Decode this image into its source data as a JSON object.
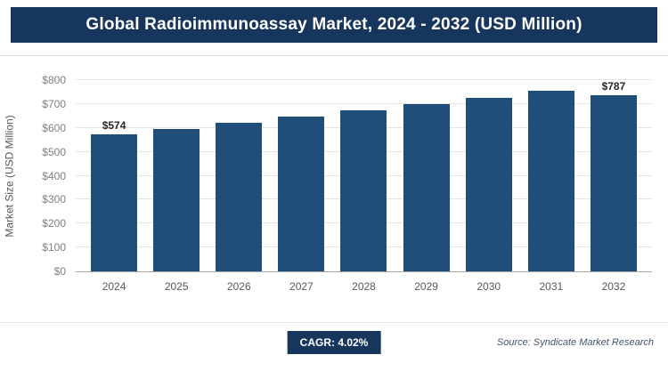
{
  "header": {
    "title": "Global Radioimmunoassay Market, 2024 - 2032 (USD Million)"
  },
  "footer": {
    "cagr_label": "CAGR: 4.02%",
    "source": "Source: Syndicate Market Research"
  },
  "colors": {
    "header_bg": "#17365d",
    "bar": "#1f4e79",
    "badge_bg": "#17365d",
    "gridline": "#e4e4e4",
    "axis_line": "#a6a6a6",
    "tick_text": "#7f7f7f",
    "year_text": "#595959"
  },
  "chart_data": {
    "type": "bar",
    "title": "Global Radioimmunoassay Market, 2024 - 2032 (USD Million)",
    "categories": [
      "2024",
      "2025",
      "2026",
      "2027",
      "2028",
      "2029",
      "2030",
      "2031",
      "2032"
    ],
    "values": [
      574,
      597,
      621,
      646,
      672,
      699,
      727,
      756,
      787
    ],
    "bar_labels": [
      "$574",
      "",
      "",
      "",
      "",
      "",
      "",
      "",
      "$787"
    ],
    "xlabel": "",
    "ylabel": "Market Size (USD Million)",
    "ylim": [
      0,
      800
    ],
    "ytick_step": 100,
    "ytick_prefix": "$",
    "grid": true,
    "legend": "none",
    "annotations": {
      "cagr": "CAGR: 4.02%",
      "source": "Source: Syndicate Market Research"
    }
  }
}
